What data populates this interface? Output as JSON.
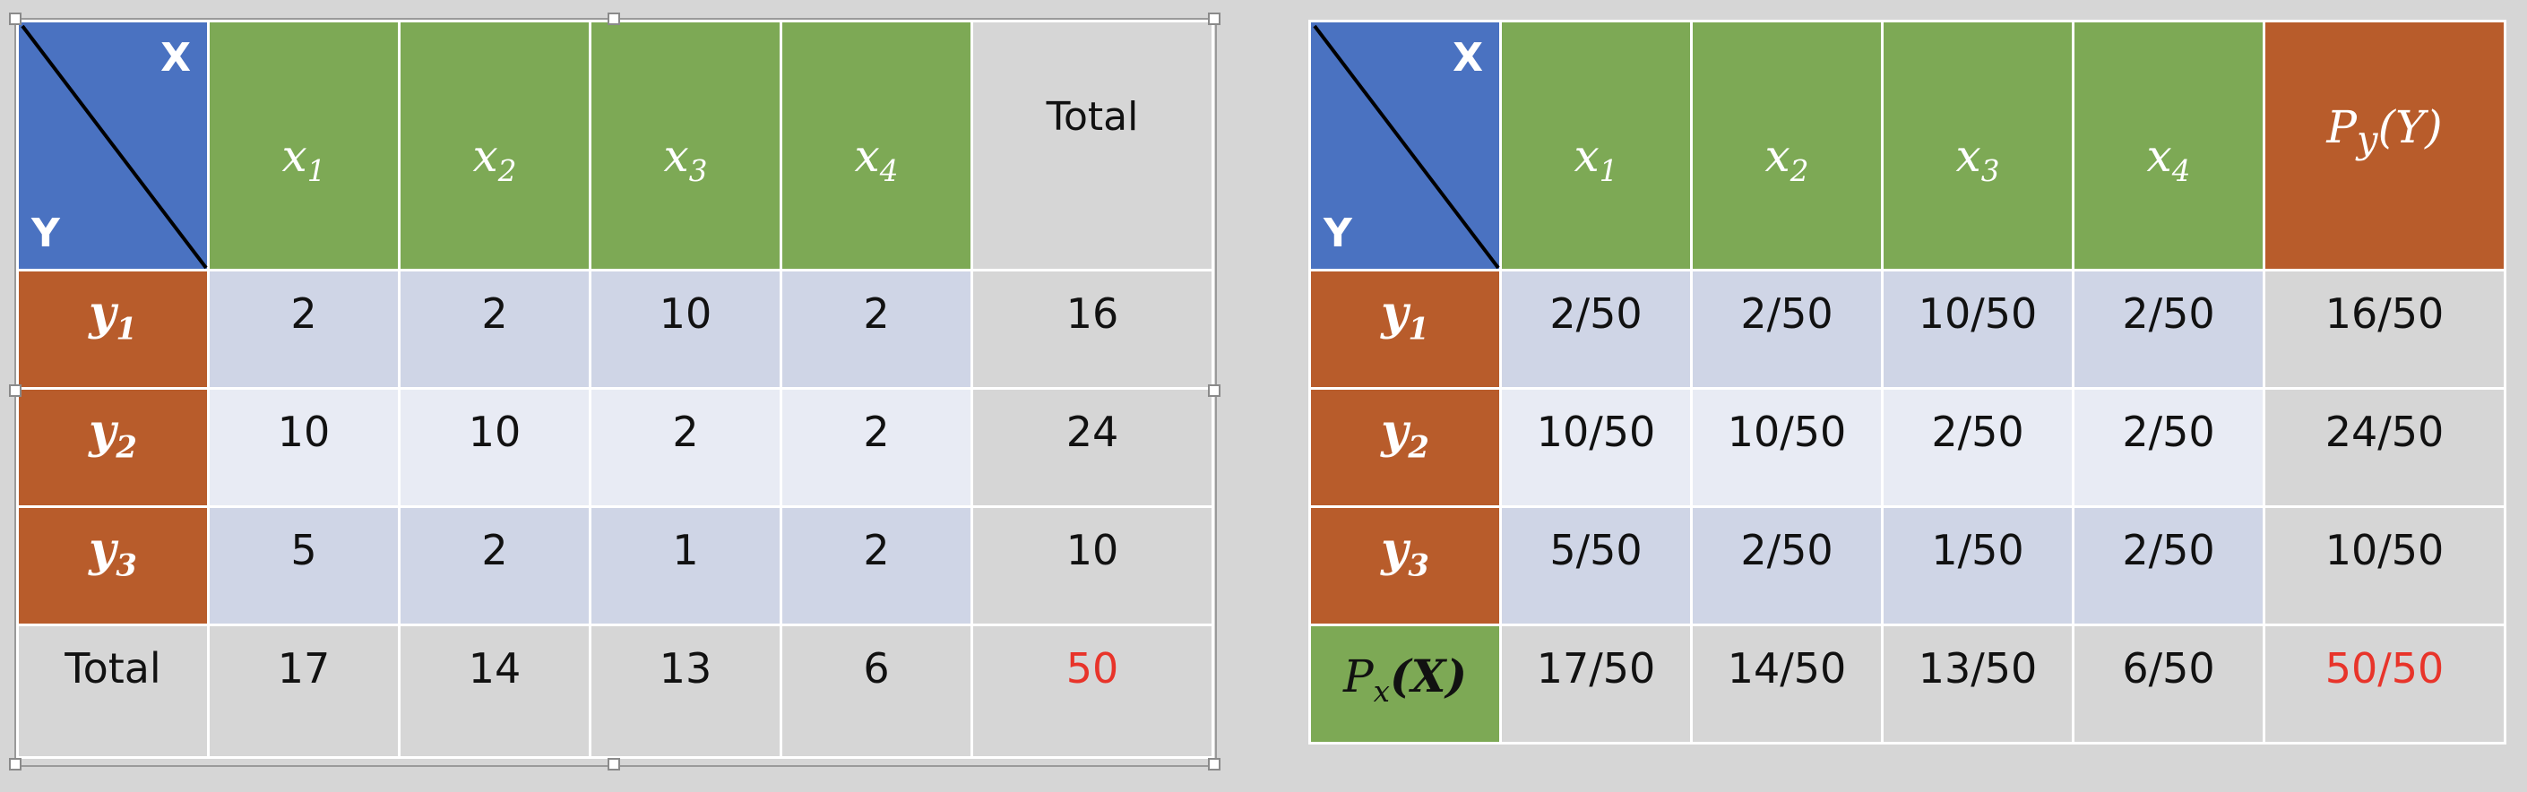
{
  "left_table": {
    "corner": {
      "x_label": "X",
      "y_label": "Y"
    },
    "col_headers": [
      "x",
      "x",
      "x",
      "x"
    ],
    "col_subs": [
      "1",
      "2",
      "3",
      "4"
    ],
    "total_header": "Total",
    "row_headers": [
      "y",
      "y",
      "y"
    ],
    "row_subs": [
      "1",
      "2",
      "3"
    ],
    "rows": [
      [
        "2",
        "2",
        "10",
        "2",
        "16"
      ],
      [
        "10",
        "10",
        "2",
        "2",
        "24"
      ],
      [
        "5",
        "2",
        "1",
        "2",
        "10"
      ]
    ],
    "total_row": {
      "label": "Total",
      "values": [
        "17",
        "14",
        "13",
        "6",
        "50"
      ]
    }
  },
  "right_table": {
    "corner": {
      "x_label": "X",
      "y_label": "Y"
    },
    "col_headers": [
      "x",
      "x",
      "x",
      "x"
    ],
    "col_subs": [
      "1",
      "2",
      "3",
      "4"
    ],
    "marginal_y_header": {
      "p": "P",
      "sub": "y",
      "arg": "(Y)"
    },
    "row_headers": [
      "y",
      "y",
      "y"
    ],
    "row_subs": [
      "1",
      "2",
      "3"
    ],
    "rows": [
      [
        "2/50",
        "2/50",
        "10/50",
        "2/50",
        "16/50"
      ],
      [
        "10/50",
        "10/50",
        "2/50",
        "2/50",
        "24/50"
      ],
      [
        "5/50",
        "2/50",
        "1/50",
        "2/50",
        "10/50"
      ]
    ],
    "marginal_x_row": {
      "label": {
        "p": "P",
        "sub": "x",
        "arg": "(X)"
      },
      "values": [
        "17/50",
        "14/50",
        "13/50",
        "6/50",
        "50/50"
      ]
    }
  },
  "colors": {
    "corner_blue": "#4a72c1",
    "header_green": "#7da955",
    "row_orange": "#b85c2b",
    "cell_dark": "#cfd5e6",
    "cell_light": "#e8ebf4",
    "background": "#d6d6d6",
    "highlight_red": "#e8342a"
  }
}
